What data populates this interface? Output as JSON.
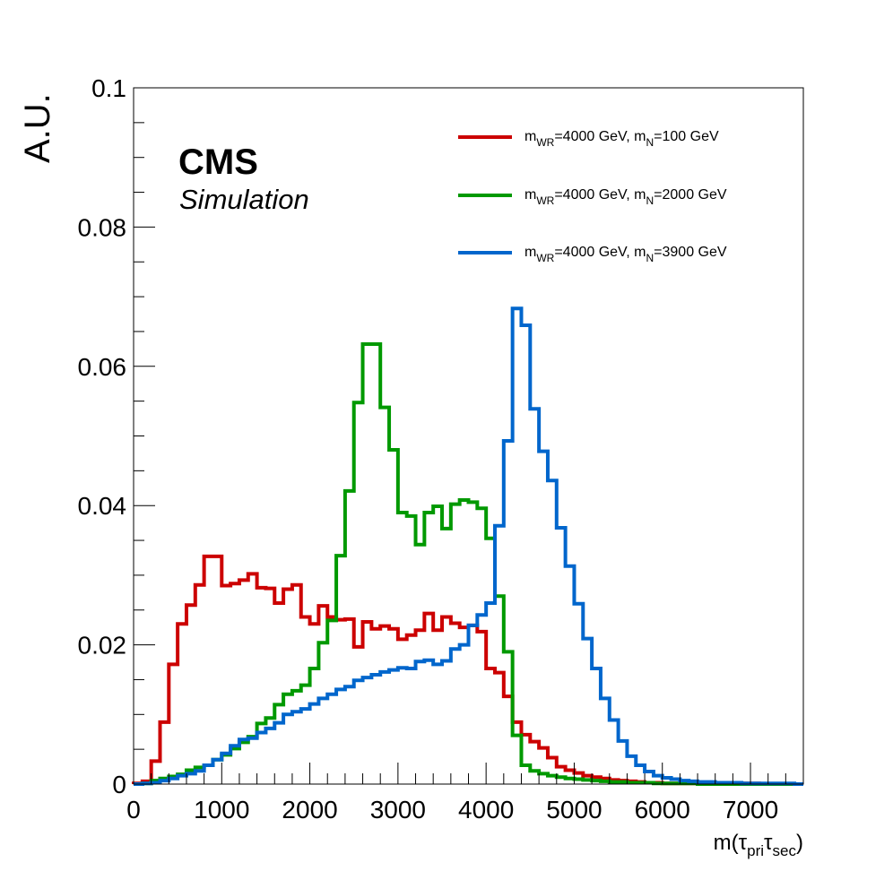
{
  "chart_data": {
    "type": "line",
    "drawstyle": "steps",
    "xlabel": "m(τpriτsec)",
    "xlabel_parts": {
      "pre": "m(",
      "tau1": "τ",
      "sub1": "pri",
      "tau2": "τ",
      "sub2": "sec",
      "post": ")"
    },
    "ylabel": "A.U.",
    "xlim": [
      0,
      7600
    ],
    "ylim": [
      0,
      0.1
    ],
    "xticks": [
      0,
      1000,
      2000,
      3000,
      4000,
      5000,
      6000,
      7000
    ],
    "xtick_labels": [
      "0",
      "1000",
      "2000",
      "3000",
      "4000",
      "5000",
      "6000",
      "7000"
    ],
    "yticks": [
      0,
      0.02,
      0.04,
      0.06,
      0.08,
      0.1
    ],
    "ytick_labels": [
      "0",
      "0.02",
      "0.04",
      "0.06",
      "0.08",
      "0.1"
    ],
    "bin_width": 100,
    "grid": false,
    "legend_position": "top-right",
    "labels": {
      "experiment": "CMS",
      "subtitle": "Simulation"
    },
    "series": [
      {
        "name_parts": {
          "m1": "m",
          "sub1": "WR",
          "mid": "=4000 GeV, m",
          "sub2": "N",
          "end": "=100 GeV"
        },
        "color": "#cc0000",
        "bin_edges_start": 0,
        "values": [
          0.0001,
          0.0004,
          0.0033,
          0.0089,
          0.0172,
          0.023,
          0.0257,
          0.0286,
          0.0327,
          0.0327,
          0.0285,
          0.0288,
          0.0293,
          0.0302,
          0.0282,
          0.0281,
          0.026,
          0.028,
          0.0286,
          0.024,
          0.023,
          0.0256,
          0.024,
          0.0236,
          0.0237,
          0.0197,
          0.0233,
          0.0223,
          0.0227,
          0.0223,
          0.0208,
          0.0214,
          0.0221,
          0.0245,
          0.0221,
          0.024,
          0.0231,
          0.0225,
          0.0228,
          0.0219,
          0.0166,
          0.016,
          0.0126,
          0.0089,
          0.0071,
          0.0061,
          0.0052,
          0.0038,
          0.0025,
          0.002,
          0.0016,
          0.0012,
          0.001,
          0.0008,
          0.0006,
          0.0005,
          0.0004,
          0.0003,
          0.0002,
          0.0002,
          0.0001,
          0.0001,
          0.0001,
          0.0001,
          0.0001,
          0.0001,
          0.0001,
          0.0001,
          0.0001,
          0.0001,
          0.0001,
          0.0,
          0.0,
          0.0,
          0.0,
          0.0
        ]
      },
      {
        "name_parts": {
          "m1": "m",
          "sub1": "WR",
          "mid": "=4000 GeV, m",
          "sub2": "N",
          "end": "=2000 GeV"
        },
        "color": "#009900",
        "bin_edges_start": 0,
        "values": [
          0.0,
          0.0001,
          0.0005,
          0.0008,
          0.0011,
          0.0014,
          0.002,
          0.0024,
          0.0027,
          0.0035,
          0.0042,
          0.0051,
          0.006,
          0.0068,
          0.0087,
          0.0095,
          0.0114,
          0.0129,
          0.0134,
          0.0142,
          0.0166,
          0.0203,
          0.0235,
          0.0328,
          0.0421,
          0.0548,
          0.0632,
          0.0632,
          0.0541,
          0.048,
          0.039,
          0.0385,
          0.0344,
          0.039,
          0.0399,
          0.0367,
          0.0402,
          0.0408,
          0.0405,
          0.0396,
          0.0353,
          0.027,
          0.019,
          0.007,
          0.0027,
          0.0019,
          0.0015,
          0.0012,
          0.001,
          0.0008,
          0.0007,
          0.0006,
          0.0005,
          0.0004,
          0.0003,
          0.0003,
          0.0002,
          0.0002,
          0.0002,
          0.0001,
          0.0001,
          0.0001,
          0.0001,
          0.0001,
          0.0,
          0.0,
          0.0,
          0.0,
          0.0,
          0.0,
          0.0,
          0.0,
          0.0,
          0.0,
          0.0,
          0.0
        ]
      },
      {
        "name_parts": {
          "m1": "m",
          "sub1": "WR",
          "mid": "=4000 GeV, m",
          "sub2": "N",
          "end": "=3900 GeV"
        },
        "color": "#0066cc",
        "bin_edges_start": 0,
        "values": [
          0.0,
          0.0001,
          0.0002,
          0.0005,
          0.0008,
          0.0012,
          0.0015,
          0.0019,
          0.0027,
          0.0035,
          0.0044,
          0.0055,
          0.0064,
          0.0066,
          0.0074,
          0.008,
          0.0088,
          0.01,
          0.0104,
          0.0108,
          0.0115,
          0.0123,
          0.0129,
          0.0136,
          0.014,
          0.0149,
          0.0153,
          0.0157,
          0.0161,
          0.0164,
          0.0167,
          0.0166,
          0.0176,
          0.0178,
          0.0172,
          0.0177,
          0.0194,
          0.02,
          0.0228,
          0.0243,
          0.026,
          0.0371,
          0.0493,
          0.0683,
          0.0659,
          0.0539,
          0.0478,
          0.0436,
          0.0368,
          0.0313,
          0.0259,
          0.0209,
          0.0166,
          0.0123,
          0.0092,
          0.0062,
          0.004,
          0.0027,
          0.0018,
          0.0012,
          0.0009,
          0.0007,
          0.0005,
          0.0004,
          0.0003,
          0.0003,
          0.0002,
          0.0002,
          0.0002,
          0.0001,
          0.0001,
          0.0001,
          0.0001,
          0.0001,
          0.0001,
          0.0
        ]
      }
    ]
  }
}
